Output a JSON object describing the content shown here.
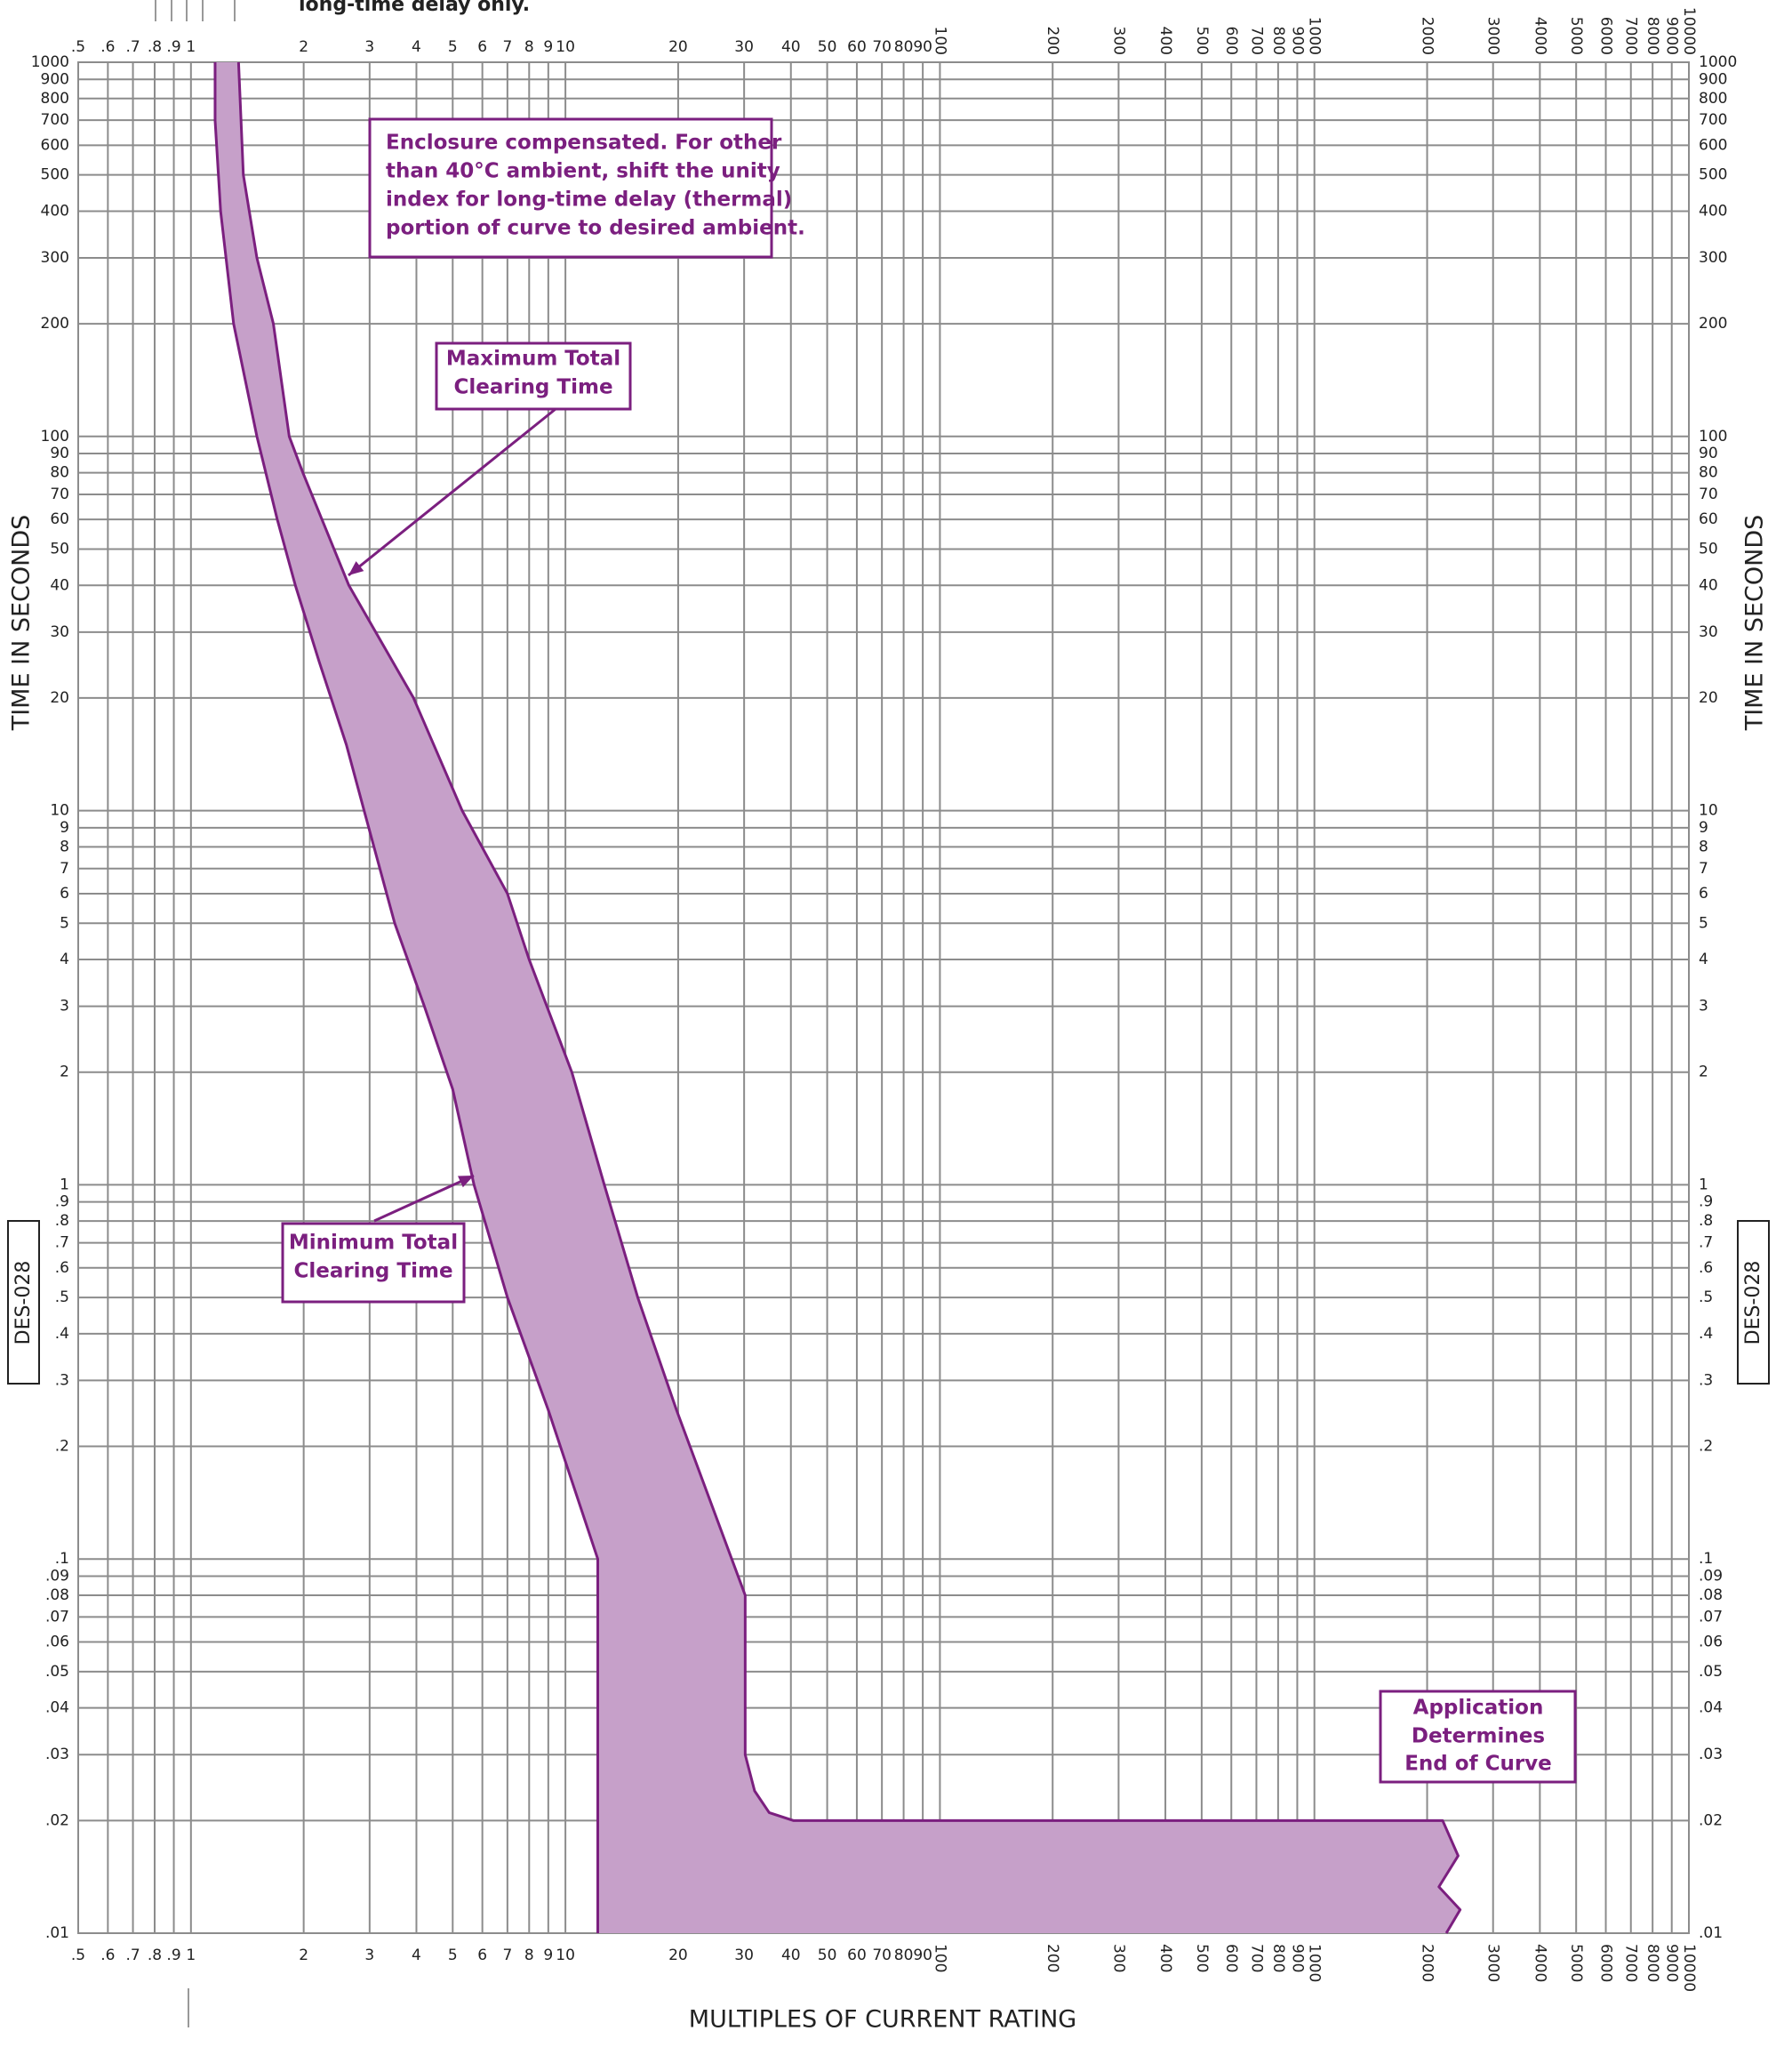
{
  "chart_data": {
    "type": "band",
    "header_fragment": "long-time delay only.",
    "xlabel": "MULTIPLES OF CURRENT RATING",
    "ylabel": "TIME IN SECONDS",
    "code": "DES-028",
    "xscale": "log",
    "yscale": "log",
    "grid": true,
    "color": "#7b1f7f",
    "fill": "#c6a0c9",
    "grid_color": "#8c8c8c",
    "xlim": [
      0.5,
      10000
    ],
    "ylim": [
      0.01,
      1000
    ],
    "xticks": [
      {
        "value": 0.5,
        "label": ".5"
      },
      {
        "value": 0.6,
        "label": ".6"
      },
      {
        "value": 0.7,
        "label": ".7"
      },
      {
        "value": 0.8,
        "label": ".8"
      },
      {
        "value": 0.9,
        "label": ".9"
      },
      1,
      2,
      3,
      4,
      5,
      6,
      7,
      8,
      9,
      10,
      20,
      30,
      40,
      50,
      60,
      70,
      80,
      90,
      100,
      200,
      300,
      400,
      500,
      600,
      700,
      800,
      900,
      1000,
      2000,
      3000,
      4000,
      5000,
      6000,
      7000,
      8000,
      9000,
      10000
    ],
    "yticks": [
      {
        "value": 0.01,
        "label": ".01"
      },
      {
        "value": 0.02,
        "label": ".02"
      },
      {
        "value": 0.03,
        "label": ".03"
      },
      {
        "value": 0.04,
        "label": ".04"
      },
      {
        "value": 0.05,
        "label": ".05"
      },
      {
        "value": 0.06,
        "label": ".06"
      },
      {
        "value": 0.07,
        "label": ".07"
      },
      {
        "value": 0.08,
        "label": ".08"
      },
      {
        "value": 0.09,
        "label": ".09"
      },
      {
        "value": 0.1,
        "label": ".1"
      },
      {
        "value": 0.2,
        "label": ".2"
      },
      {
        "value": 0.3,
        "label": ".3"
      },
      {
        "value": 0.4,
        "label": ".4"
      },
      {
        "value": 0.5,
        "label": ".5"
      },
      {
        "value": 0.6,
        "label": ".6"
      },
      {
        "value": 0.7,
        "label": ".7"
      },
      {
        "value": 0.8,
        "label": ".8"
      },
      {
        "value": 0.9,
        "label": ".9"
      },
      1,
      2,
      3,
      4,
      5,
      6,
      7,
      8,
      9,
      10,
      20,
      30,
      40,
      50,
      60,
      70,
      80,
      90,
      100,
      200,
      300,
      400,
      500,
      600,
      700,
      800,
      900,
      1000
    ],
    "series": [
      {
        "x": [
          1.34,
          1.38,
          1.5,
          1.66,
          1.83,
          1.99,
          2.64,
          3.93,
          5.3,
          7,
          8,
          10.4,
          12.7,
          15.6,
          19.8,
          30.2,
          30.2,
          32,
          35,
          40.6,
          2200,
          2420,
          2150,
          2450,
          2250
        ],
        "values": [
          1000,
          500,
          300,
          200,
          100,
          80,
          40,
          20,
          10,
          6,
          4,
          2,
          1,
          0.5,
          0.25,
          0.08,
          0.03,
          0.024,
          0.021,
          0.02,
          0.02,
          0.0161,
          0.0133,
          0.01155,
          0.01
        ]
      },
      {
        "x": [
          1.16,
          1.16,
          1.2,
          1.3,
          1.5,
          1.7,
          1.9,
          2.2,
          2.6,
          2.9,
          3.5,
          4.2,
          5,
          5.7,
          7,
          9,
          12.2,
          12.2
        ],
        "values": [
          1000,
          700,
          400,
          200,
          100,
          60,
          40,
          25,
          15,
          10,
          5,
          3,
          1.8,
          1,
          0.5,
          0.25,
          0.1,
          0.01
        ]
      }
    ],
    "annotations": [
      {
        "lines": [
          "Enclosure compensated. For other",
          "than 40°C ambient, shift the unity",
          "index for long-time delay (thermal)",
          "portion of curve to desired ambient."
        ]
      },
      {
        "lines": [
          "Maximum Total",
          "Clearing Time"
        ]
      },
      {
        "lines": [
          "Minimum Total",
          "Clearing Time"
        ]
      },
      {
        "lines": [
          "Application",
          "Determines",
          "End of Curve"
        ]
      }
    ]
  }
}
